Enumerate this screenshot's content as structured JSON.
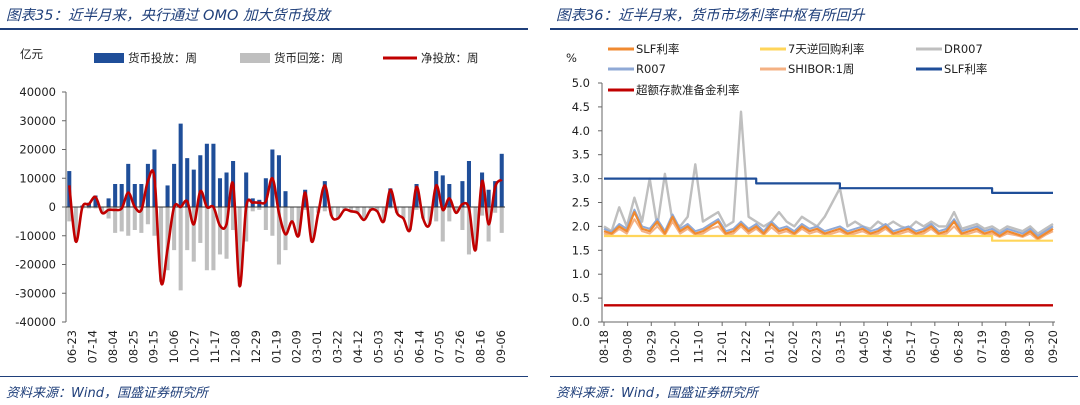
{
  "left": {
    "title": "图表35：近半月来，央行通过 OMO 加大货币投放",
    "source": "资料来源：Wind，国盛证券研究所",
    "chart_data": {
      "type": "bar",
      "unit": "亿元",
      "ylim": [
        -40000,
        40000
      ],
      "yticks": [
        40000,
        30000,
        20000,
        10000,
        0,
        -10000,
        -20000,
        -30000,
        -40000
      ],
      "xtick_labels": [
        "06-23",
        "07-14",
        "08-04",
        "08-25",
        "09-15",
        "10-06",
        "10-27",
        "11-17",
        "12-08",
        "12-29",
        "01-19",
        "02-09",
        "03-01",
        "03-22",
        "04-12",
        "05-03",
        "05-24",
        "06-14",
        "07-05",
        "07-26",
        "08-16",
        "09-06"
      ],
      "legend_position": "top",
      "colors": {
        "injection": "#1f4e99",
        "withdrawal": "#bfbfbf",
        "net": "#c00000"
      },
      "series": [
        {
          "name": "货币投放：周",
          "kind": "bar",
          "values": [
            12500,
            0,
            500,
            1500,
            4000,
            0,
            3000,
            8000,
            8000,
            15000,
            8000,
            8000,
            15000,
            20000,
            0,
            7500,
            15000,
            29000,
            17000,
            13000,
            18000,
            22000,
            22000,
            10000,
            12000,
            16000,
            0,
            12000,
            3000,
            2500,
            10000,
            20000,
            18000,
            5500,
            0,
            0,
            6000,
            0,
            0,
            9000,
            0,
            0,
            0,
            0,
            0,
            0,
            0,
            0,
            0,
            6500,
            0,
            0,
            0,
            8000,
            0,
            0,
            12500,
            11000,
            8000,
            0,
            9000,
            16000,
            0,
            12000,
            6000,
            9000,
            18500
          ]
        },
        {
          "name": "货币回笼：周",
          "kind": "bar",
          "values": [
            -5000,
            -12000,
            -500,
            -500,
            -500,
            -2000,
            -4000,
            -9000,
            -8500,
            -10000,
            -8000,
            -9000,
            -6000,
            -10000,
            -26000,
            -22000,
            -15000,
            -29000,
            -15000,
            -19000,
            -12500,
            -22000,
            -22000,
            -16500,
            -18000,
            -8000,
            -27500,
            -12000,
            -1500,
            -1000,
            -8000,
            -10000,
            -20000,
            -15000,
            -5000,
            -10000,
            -1000,
            -12000,
            -2000,
            -1500,
            -3000,
            -4000,
            -1000,
            -1500,
            -2000,
            -4500,
            -1000,
            -1500,
            -5000,
            -500,
            -2000,
            -4000,
            -8000,
            -1000,
            -4000,
            -6000,
            -5000,
            -12000,
            -5000,
            -2000,
            -8000,
            -16500,
            -15000,
            -3000,
            -12000,
            -2000,
            -9000
          ]
        },
        {
          "name": "净投放：周",
          "kind": "line",
          "values": [
            7500,
            -12000,
            0,
            1000,
            3500,
            -2000,
            -1000,
            -1000,
            -500,
            5000,
            0,
            -1000,
            9000,
            10000,
            -26000,
            -14500,
            0,
            0,
            2000,
            -6000,
            5500,
            0,
            0,
            -6500,
            -6000,
            8000,
            -27500,
            0,
            1500,
            1500,
            2000,
            10000,
            -2000,
            -9500,
            -5000,
            -10000,
            5000,
            -12000,
            -2000,
            7500,
            -3000,
            -4000,
            -1000,
            -1500,
            -2000,
            -4500,
            -1000,
            -1500,
            -5000,
            6000,
            -2000,
            -4000,
            -8000,
            7000,
            -4000,
            -6000,
            7500,
            -1000,
            3000,
            -2000,
            1000,
            -500,
            -15000,
            9000,
            -6000,
            7000,
            9500
          ]
        }
      ]
    }
  },
  "right": {
    "title": "图表36：近半月来，货币市场利率中枢有所回升",
    "source": "资料来源：Wind，国盛证券研究所",
    "chart_data": {
      "type": "line",
      "unit": "%",
      "ylim": [
        0,
        5.0
      ],
      "yticks": [
        "5.0",
        "4.5",
        "4.0",
        "3.5",
        "3.0",
        "2.5",
        "2.0",
        "1.5",
        "1.0",
        "0.5",
        "0.0"
      ],
      "xtick_labels": [
        "08-18",
        "09-08",
        "09-29",
        "10-20",
        "11-10",
        "12-01",
        "12-22",
        "01-12",
        "02-02",
        "02-23",
        "03-15",
        "04-05",
        "04-26",
        "05-17",
        "06-07",
        "06-28",
        "07-19",
        "08-09",
        "08-30",
        "09-20"
      ],
      "legend_position": "top",
      "series": [
        {
          "name": "SLF利率",
          "color": "#f08a30",
          "width": 2.2,
          "kind": "rate",
          "values": [
            1.9,
            1.85,
            2.0,
            1.9,
            2.3,
            1.95,
            1.9,
            2.1,
            1.85,
            2.2,
            1.9,
            2.0,
            1.85,
            1.9,
            2.0,
            2.1,
            1.85,
            1.9,
            2.05,
            1.9,
            2.0,
            1.85,
            2.05,
            1.9,
            1.95,
            1.85,
            2.0,
            1.9,
            1.95,
            1.85,
            1.9,
            1.95,
            1.85,
            1.9,
            1.95,
            1.85,
            1.9,
            2.0,
            1.85,
            1.9,
            1.95,
            1.85,
            1.9,
            2.0,
            1.85,
            1.9,
            2.1,
            1.85,
            1.9,
            1.95,
            1.85,
            1.9,
            1.8,
            1.9,
            1.85,
            1.8,
            1.9,
            1.75,
            1.85,
            1.95
          ]
        },
        {
          "name": "7天逆回购利率",
          "color": "#ffd55a",
          "width": 2.2,
          "kind": "policy",
          "values": [
            1.8,
            1.8,
            1.8,
            1.8,
            1.8,
            1.8,
            1.8,
            1.8,
            1.8,
            1.8,
            1.8,
            1.8,
            1.8,
            1.8,
            1.8,
            1.8,
            1.8,
            1.8,
            1.8,
            1.8,
            1.8,
            1.8,
            1.8,
            1.8,
            1.8,
            1.8,
            1.8,
            1.8,
            1.8,
            1.8,
            1.8,
            1.8,
            1.8,
            1.8,
            1.8,
            1.8,
            1.8,
            1.8,
            1.8,
            1.8,
            1.8,
            1.8,
            1.8,
            1.8,
            1.8,
            1.8,
            1.8,
            1.8,
            1.8,
            1.8,
            1.8,
            1.7,
            1.7,
            1.7,
            1.7,
            1.7,
            1.7,
            1.7,
            1.7,
            1.7
          ]
        },
        {
          "name": "DR007",
          "color": "#bfbfbf",
          "width": 2.4,
          "kind": "rate",
          "values": [
            2.0,
            1.9,
            2.4,
            2.0,
            2.6,
            2.1,
            3.0,
            2.0,
            3.1,
            2.1,
            2.0,
            2.2,
            3.3,
            2.1,
            2.2,
            2.3,
            2.0,
            2.1,
            4.4,
            2.2,
            2.1,
            2.0,
            2.1,
            2.3,
            2.1,
            2.0,
            2.2,
            2.1,
            2.0,
            2.2,
            2.5,
            2.8,
            2.0,
            2.1,
            2.0,
            1.95,
            2.1,
            2.0,
            2.1,
            2.0,
            1.95,
            2.1,
            2.0,
            2.1,
            2.0,
            2.0,
            2.3,
            1.95,
            2.0,
            2.05,
            1.95,
            2.0,
            1.9,
            2.0,
            1.95,
            1.9,
            2.0,
            1.85,
            1.95,
            2.05
          ]
        },
        {
          "name": "R007",
          "color": "#8fa9d6",
          "width": 2.0,
          "kind": "rate",
          "values": [
            1.95,
            1.88,
            2.05,
            1.95,
            2.35,
            2.0,
            1.95,
            2.15,
            1.9,
            2.25,
            1.95,
            2.05,
            1.9,
            1.95,
            2.05,
            2.15,
            1.9,
            1.95,
            2.1,
            1.95,
            2.05,
            1.9,
            2.1,
            1.95,
            2.0,
            1.9,
            2.05,
            1.95,
            2.0,
            1.9,
            1.95,
            2.0,
            1.9,
            1.95,
            2.0,
            1.9,
            1.95,
            2.05,
            1.9,
            1.95,
            2.0,
            1.9,
            1.95,
            2.05,
            1.9,
            1.95,
            2.15,
            1.9,
            1.95,
            2.0,
            1.9,
            1.95,
            1.85,
            1.95,
            1.9,
            1.85,
            1.95,
            1.8,
            1.9,
            2.0
          ]
        },
        {
          "name": "SHIBOR:1周",
          "color": "#f4b183",
          "width": 2.0,
          "kind": "rate",
          "values": [
            1.85,
            1.82,
            1.95,
            1.85,
            2.15,
            1.9,
            1.85,
            2.0,
            1.82,
            2.1,
            1.85,
            1.95,
            1.82,
            1.85,
            1.95,
            2.0,
            1.82,
            1.85,
            2.0,
            1.85,
            1.95,
            1.82,
            1.98,
            1.85,
            1.9,
            1.82,
            1.95,
            1.85,
            1.9,
            1.82,
            1.85,
            1.9,
            1.82,
            1.85,
            1.9,
            1.82,
            1.85,
            1.95,
            1.82,
            1.85,
            1.9,
            1.82,
            1.85,
            1.95,
            1.82,
            1.85,
            2.0,
            1.82,
            1.85,
            1.9,
            1.82,
            1.85,
            1.78,
            1.85,
            1.82,
            1.78,
            1.85,
            1.72,
            1.82,
            1.9
          ]
        },
        {
          "name": "SLF利率",
          "color": "#1f4e99",
          "width": 2.2,
          "kind": "policy",
          "values": [
            3.0,
            3.0,
            3.0,
            3.0,
            3.0,
            3.0,
            3.0,
            3.0,
            3.0,
            3.0,
            3.0,
            3.0,
            3.0,
            3.0,
            3.0,
            3.0,
            3.0,
            3.0,
            3.0,
            3.0,
            2.9,
            2.9,
            2.9,
            2.9,
            2.9,
            2.9,
            2.9,
            2.9,
            2.9,
            2.9,
            2.9,
            2.8,
            2.8,
            2.8,
            2.8,
            2.8,
            2.8,
            2.8,
            2.8,
            2.8,
            2.8,
            2.8,
            2.8,
            2.8,
            2.8,
            2.8,
            2.8,
            2.8,
            2.8,
            2.8,
            2.8,
            2.7,
            2.7,
            2.7,
            2.7,
            2.7,
            2.7,
            2.7,
            2.7,
            2.7
          ]
        },
        {
          "name": "超额存款准备金利率",
          "color": "#c00000",
          "width": 2.4,
          "kind": "policy",
          "values": [
            0.35,
            0.35,
            0.35,
            0.35,
            0.35,
            0.35,
            0.35,
            0.35,
            0.35,
            0.35,
            0.35,
            0.35,
            0.35,
            0.35,
            0.35,
            0.35,
            0.35,
            0.35,
            0.35,
            0.35,
            0.35,
            0.35,
            0.35,
            0.35,
            0.35,
            0.35,
            0.35,
            0.35,
            0.35,
            0.35,
            0.35,
            0.35,
            0.35,
            0.35,
            0.35,
            0.35,
            0.35,
            0.35,
            0.35,
            0.35,
            0.35,
            0.35,
            0.35,
            0.35,
            0.35,
            0.35,
            0.35,
            0.35,
            0.35,
            0.35,
            0.35,
            0.35,
            0.35,
            0.35,
            0.35,
            0.35,
            0.35,
            0.35,
            0.35,
            0.35
          ]
        }
      ]
    }
  }
}
